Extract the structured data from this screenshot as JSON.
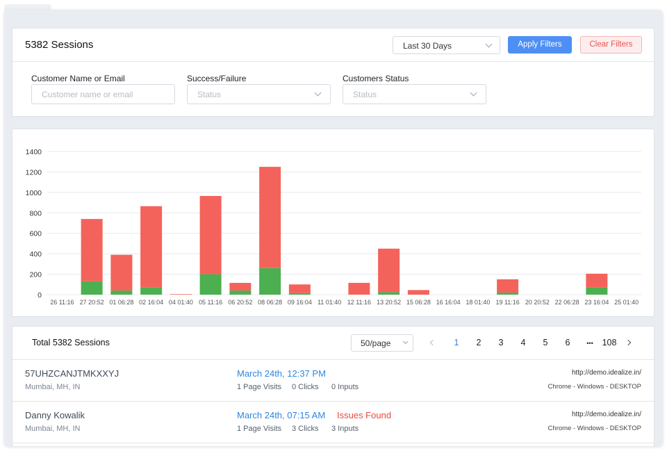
{
  "filters": {
    "sessions_title": "5382 Sessions",
    "date_range": "Last 30 Days",
    "apply_label": "Apply Filters",
    "clear_label": "Clear Filters",
    "customer": {
      "label": "Customer Name or Email",
      "placeholder": "Customer name or email"
    },
    "success": {
      "label": "Success/Failure",
      "placeholder": "Status"
    },
    "customer_status": {
      "label": "Customers Status",
      "placeholder": "Status"
    }
  },
  "chart_data": {
    "type": "bar",
    "stacked": true,
    "categories": [
      "26 11:16",
      "27 20:52",
      "01 06:28",
      "02 16:04",
      "04 01:40",
      "05 11:16",
      "06 20:52",
      "08 06:28",
      "09 16:04",
      "11 01:40",
      "12 11:16",
      "13 20:52",
      "15 06:28",
      "16 16:04",
      "18 01:40",
      "19 11:16",
      "20 20:52",
      "22 06:28",
      "23 16:04",
      "25 01:40"
    ],
    "series": [
      {
        "color": "#4caf50",
        "values": [
          0,
          130,
          40,
          70,
          0,
          200,
          40,
          260,
          15,
          0,
          0,
          25,
          0,
          0,
          0,
          20,
          0,
          0,
          70,
          0
        ]
      },
      {
        "color": "#f4635b",
        "values": [
          0,
          610,
          350,
          795,
          5,
          765,
          75,
          990,
          85,
          0,
          115,
          425,
          45,
          0,
          0,
          130,
          0,
          0,
          135,
          0
        ]
      }
    ],
    "ylim": [
      0,
      1400
    ],
    "yticks": [
      0,
      200,
      400,
      600,
      800,
      1000,
      1200,
      1400
    ],
    "grid": true
  },
  "list": {
    "total_label": "Total 5382 Sessions",
    "per_page": "50/page",
    "pages": [
      "1",
      "2",
      "3",
      "4",
      "5",
      "6"
    ],
    "ellipsis": "•••",
    "last_page": "108",
    "rows": [
      {
        "name": "57UHZCANJTMKXXYJ",
        "location": "Mumbai, MH, IN",
        "date": "March 24th, 12:37 PM",
        "issue": "",
        "page_visits": "1 Page Visits",
        "clicks": "0 Clicks",
        "inputs": "0 Inputs",
        "url": "http://demo.idealize.in/",
        "user_agent": "Chrome - Windows - DESKTOP"
      },
      {
        "name": "Danny Kowalik",
        "location": "Mumbai, MH, IN",
        "date": "March 24th, 07:15 AM",
        "issue": "Issues Found",
        "page_visits": "1 Page Visits",
        "clicks": "3 Clicks",
        "inputs": "3 Inputs",
        "url": "http://demo.idealize.in/",
        "user_agent": "Chrome - Windows - DESKTOP"
      }
    ]
  }
}
